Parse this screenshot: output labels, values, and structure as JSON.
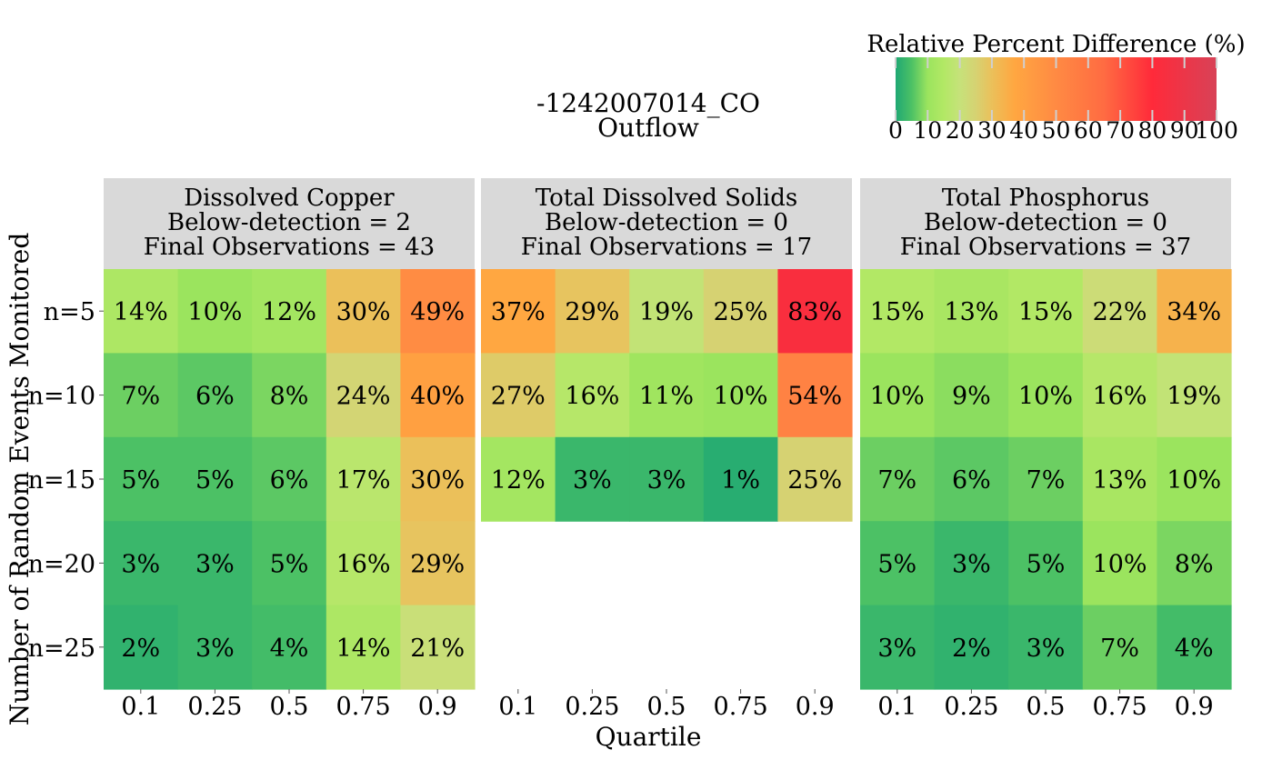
{
  "chart_data": {
    "type": "heatmap",
    "title_lines": [
      "-1242007014_CO",
      "Outflow"
    ],
    "xlabel": "Quartile",
    "ylabel": "Number of Random Events Monitored",
    "x_categories": [
      "0.1",
      "0.25",
      "0.5",
      "0.75",
      "0.9"
    ],
    "y_categories": [
      "n=5",
      "n=10",
      "n=15",
      "n=20",
      "n=25"
    ],
    "colorbar": {
      "title": "Relative Percent Difference (%)",
      "range": [
        0,
        100
      ],
      "ticks": [
        "0",
        "10",
        "20",
        "30",
        "40",
        "50",
        "60",
        "70",
        "80",
        "90",
        "100"
      ],
      "stops": [
        {
          "value": 0,
          "color": "#1fa874"
        },
        {
          "value": 5,
          "color": "#4cc165"
        },
        {
          "value": 10,
          "color": "#9be45e"
        },
        {
          "value": 15,
          "color": "#b2e865"
        },
        {
          "value": 20,
          "color": "#c6e27a"
        },
        {
          "value": 25,
          "color": "#d6d272"
        },
        {
          "value": 30,
          "color": "#ebc05a"
        },
        {
          "value": 37,
          "color": "#ffa741"
        },
        {
          "value": 50,
          "color": "#ff8a43"
        },
        {
          "value": 65,
          "color": "#ff6b42"
        },
        {
          "value": 80,
          "color": "#ff2a3a"
        },
        {
          "value": 100,
          "color": "#d84257"
        }
      ]
    },
    "facets": [
      {
        "name": "Dissolved Copper",
        "below_detection": "Below-detection = 2",
        "final_observations": "Final Observations = 43",
        "values": [
          [
            14,
            10,
            12,
            30,
            49
          ],
          [
            7,
            6,
            8,
            24,
            40
          ],
          [
            5,
            5,
            6,
            17,
            30
          ],
          [
            3,
            3,
            5,
            16,
            29
          ],
          [
            2,
            3,
            4,
            14,
            21
          ]
        ]
      },
      {
        "name": "Total Dissolved Solids",
        "below_detection": "Below-detection = 0",
        "final_observations": "Final Observations = 17",
        "values": [
          [
            37,
            29,
            19,
            25,
            83
          ],
          [
            27,
            16,
            11,
            10,
            54
          ],
          [
            12,
            3,
            3,
            1,
            25
          ]
        ]
      },
      {
        "name": "Total Phosphorus",
        "below_detection": "Below-detection = 0",
        "final_observations": "Final Observations = 37",
        "values": [
          [
            15,
            13,
            15,
            22,
            34
          ],
          [
            10,
            9,
            10,
            16,
            19
          ],
          [
            7,
            6,
            7,
            13,
            10
          ],
          [
            5,
            3,
            5,
            10,
            8
          ],
          [
            3,
            2,
            3,
            7,
            4
          ]
        ]
      }
    ]
  }
}
